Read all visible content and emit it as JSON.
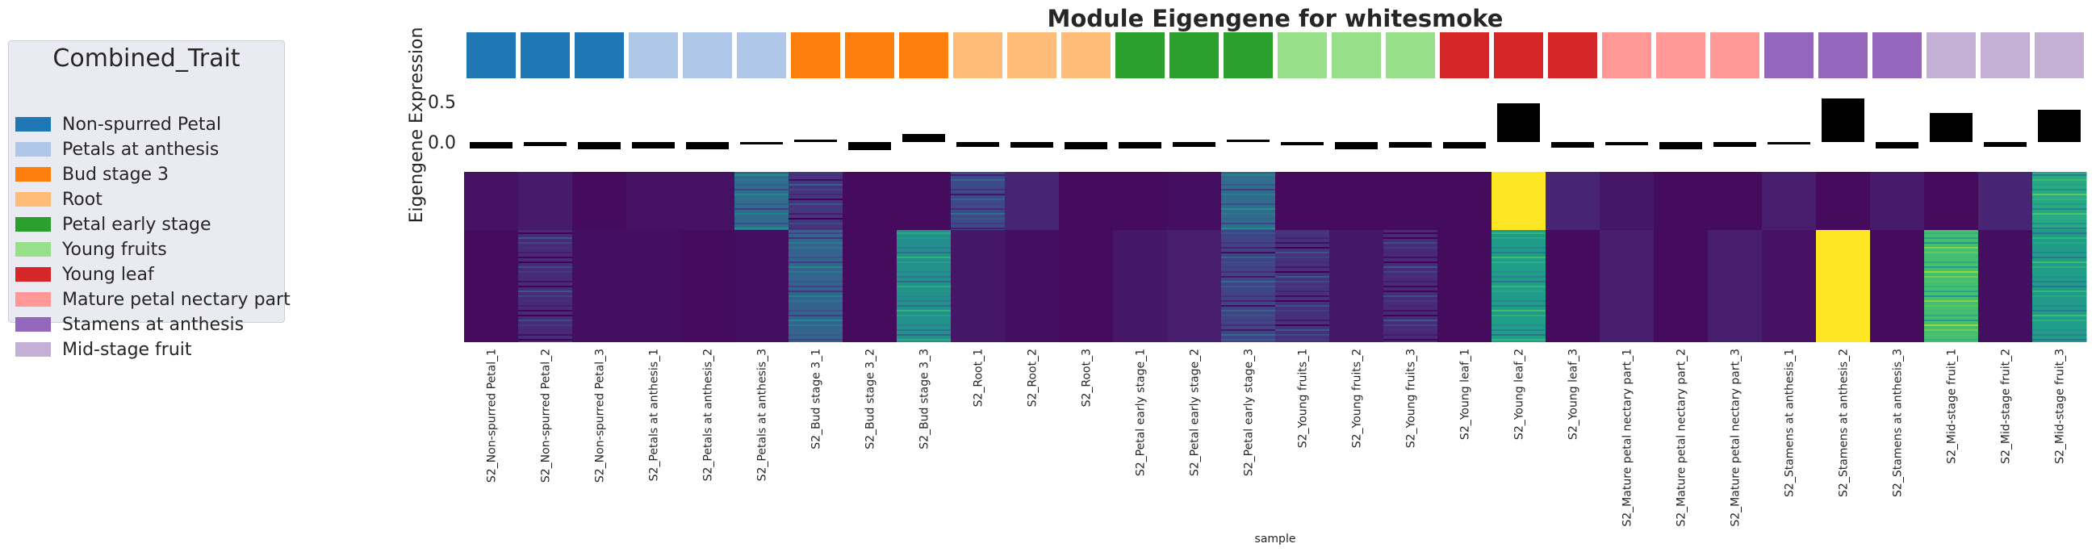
{
  "chart_data": {
    "type": "heatmap",
    "title": "Module Eigengene for whitesmoke",
    "ylabel": "Eigengene Expression",
    "xlabel": "sample",
    "bar_ticks": [
      "0.5",
      "0.0"
    ],
    "bar_ylim": [
      -0.15,
      0.6
    ],
    "samples": [
      "S2_Non-spurred Petal_1",
      "S2_Non-spurred Petal_2",
      "S2_Non-spurred Petal_3",
      "S2_Petals at anthesis_1",
      "S2_Petals at anthesis_2",
      "S2_Petals at anthesis_3",
      "S2_Bud stage 3_1",
      "S2_Bud stage 3_2",
      "S2_Bud stage 3_3",
      "S2_Root_1",
      "S2_Root_2",
      "S2_Root_3",
      "S2_Petal early stage_1",
      "S2_Petal early stage_2",
      "S2_Petal early stage_3",
      "S2_Young fruits_1",
      "S2_Young fruits_2",
      "S2_Young fruits_3",
      "S2_Young leaf_1",
      "S2_Young leaf_2",
      "S2_Young leaf_3",
      "S2_Mature petal nectary part_1",
      "S2_Mature petal nectary part_2",
      "S2_Mature petal nectary part_3",
      "S2_Stamens at anthesis_1",
      "S2_Stamens at anthesis_2",
      "S2_Stamens at anthesis_3",
      "S2_Mid-stage fruit_1",
      "S2_Mid-stage fruit_2",
      "S2_Mid-stage fruit_3"
    ],
    "sample_trait_index": [
      0,
      0,
      0,
      1,
      1,
      1,
      2,
      2,
      2,
      3,
      3,
      3,
      4,
      4,
      4,
      5,
      5,
      5,
      6,
      6,
      6,
      7,
      7,
      7,
      8,
      8,
      8,
      9,
      9,
      9
    ],
    "eigengene": [
      -0.08,
      -0.05,
      -0.09,
      -0.08,
      -0.09,
      -0.03,
      0.03,
      -0.1,
      0.1,
      -0.06,
      -0.07,
      -0.09,
      -0.08,
      -0.06,
      0.03,
      -0.04,
      -0.09,
      -0.07,
      -0.08,
      0.48,
      -0.07,
      -0.04,
      -0.09,
      -0.06,
      -0.03,
      0.54,
      -0.08,
      0.36,
      -0.06,
      0.4
    ],
    "heatmap_top": [
      0.05,
      0.07,
      0.03,
      0.05,
      0.05,
      0.35,
      0.15,
      0.03,
      0.03,
      0.22,
      0.1,
      0.03,
      0.03,
      0.04,
      0.35,
      0.03,
      0.03,
      0.03,
      0.03,
      1.0,
      0.1,
      0.06,
      0.03,
      0.03,
      0.08,
      0.03,
      0.07,
      0.03,
      0.1,
      0.6
    ],
    "heatmap_bottom": [
      0.03,
      0.12,
      0.04,
      0.04,
      0.03,
      0.04,
      0.32,
      0.03,
      0.5,
      0.06,
      0.04,
      0.03,
      0.06,
      0.08,
      0.2,
      0.14,
      0.06,
      0.12,
      0.03,
      0.55,
      0.03,
      0.08,
      0.03,
      0.08,
      0.05,
      1.0,
      0.03,
      0.7,
      0.04,
      0.55
    ],
    "legend": {
      "title": "Combined_Trait",
      "placement": "left",
      "items": [
        {
          "label": "Non-spurred Petal",
          "color": "#1f77b4"
        },
        {
          "label": "Petals at anthesis",
          "color": "#aec7e8"
        },
        {
          "label": "Bud stage 3",
          "color": "#ff7f0e"
        },
        {
          "label": "Root",
          "color": "#ffbb78"
        },
        {
          "label": "Petal early stage",
          "color": "#2ca02c"
        },
        {
          "label": "Young fruits",
          "color": "#98df8a"
        },
        {
          "label": "Young leaf",
          "color": "#d62728"
        },
        {
          "label": "Mature petal nectary part",
          "color": "#ff9896"
        },
        {
          "label": "Stamens at anthesis",
          "color": "#9467bd"
        },
        {
          "label": "Mid-stage fruit",
          "color": "#c5b0d5"
        }
      ]
    }
  }
}
